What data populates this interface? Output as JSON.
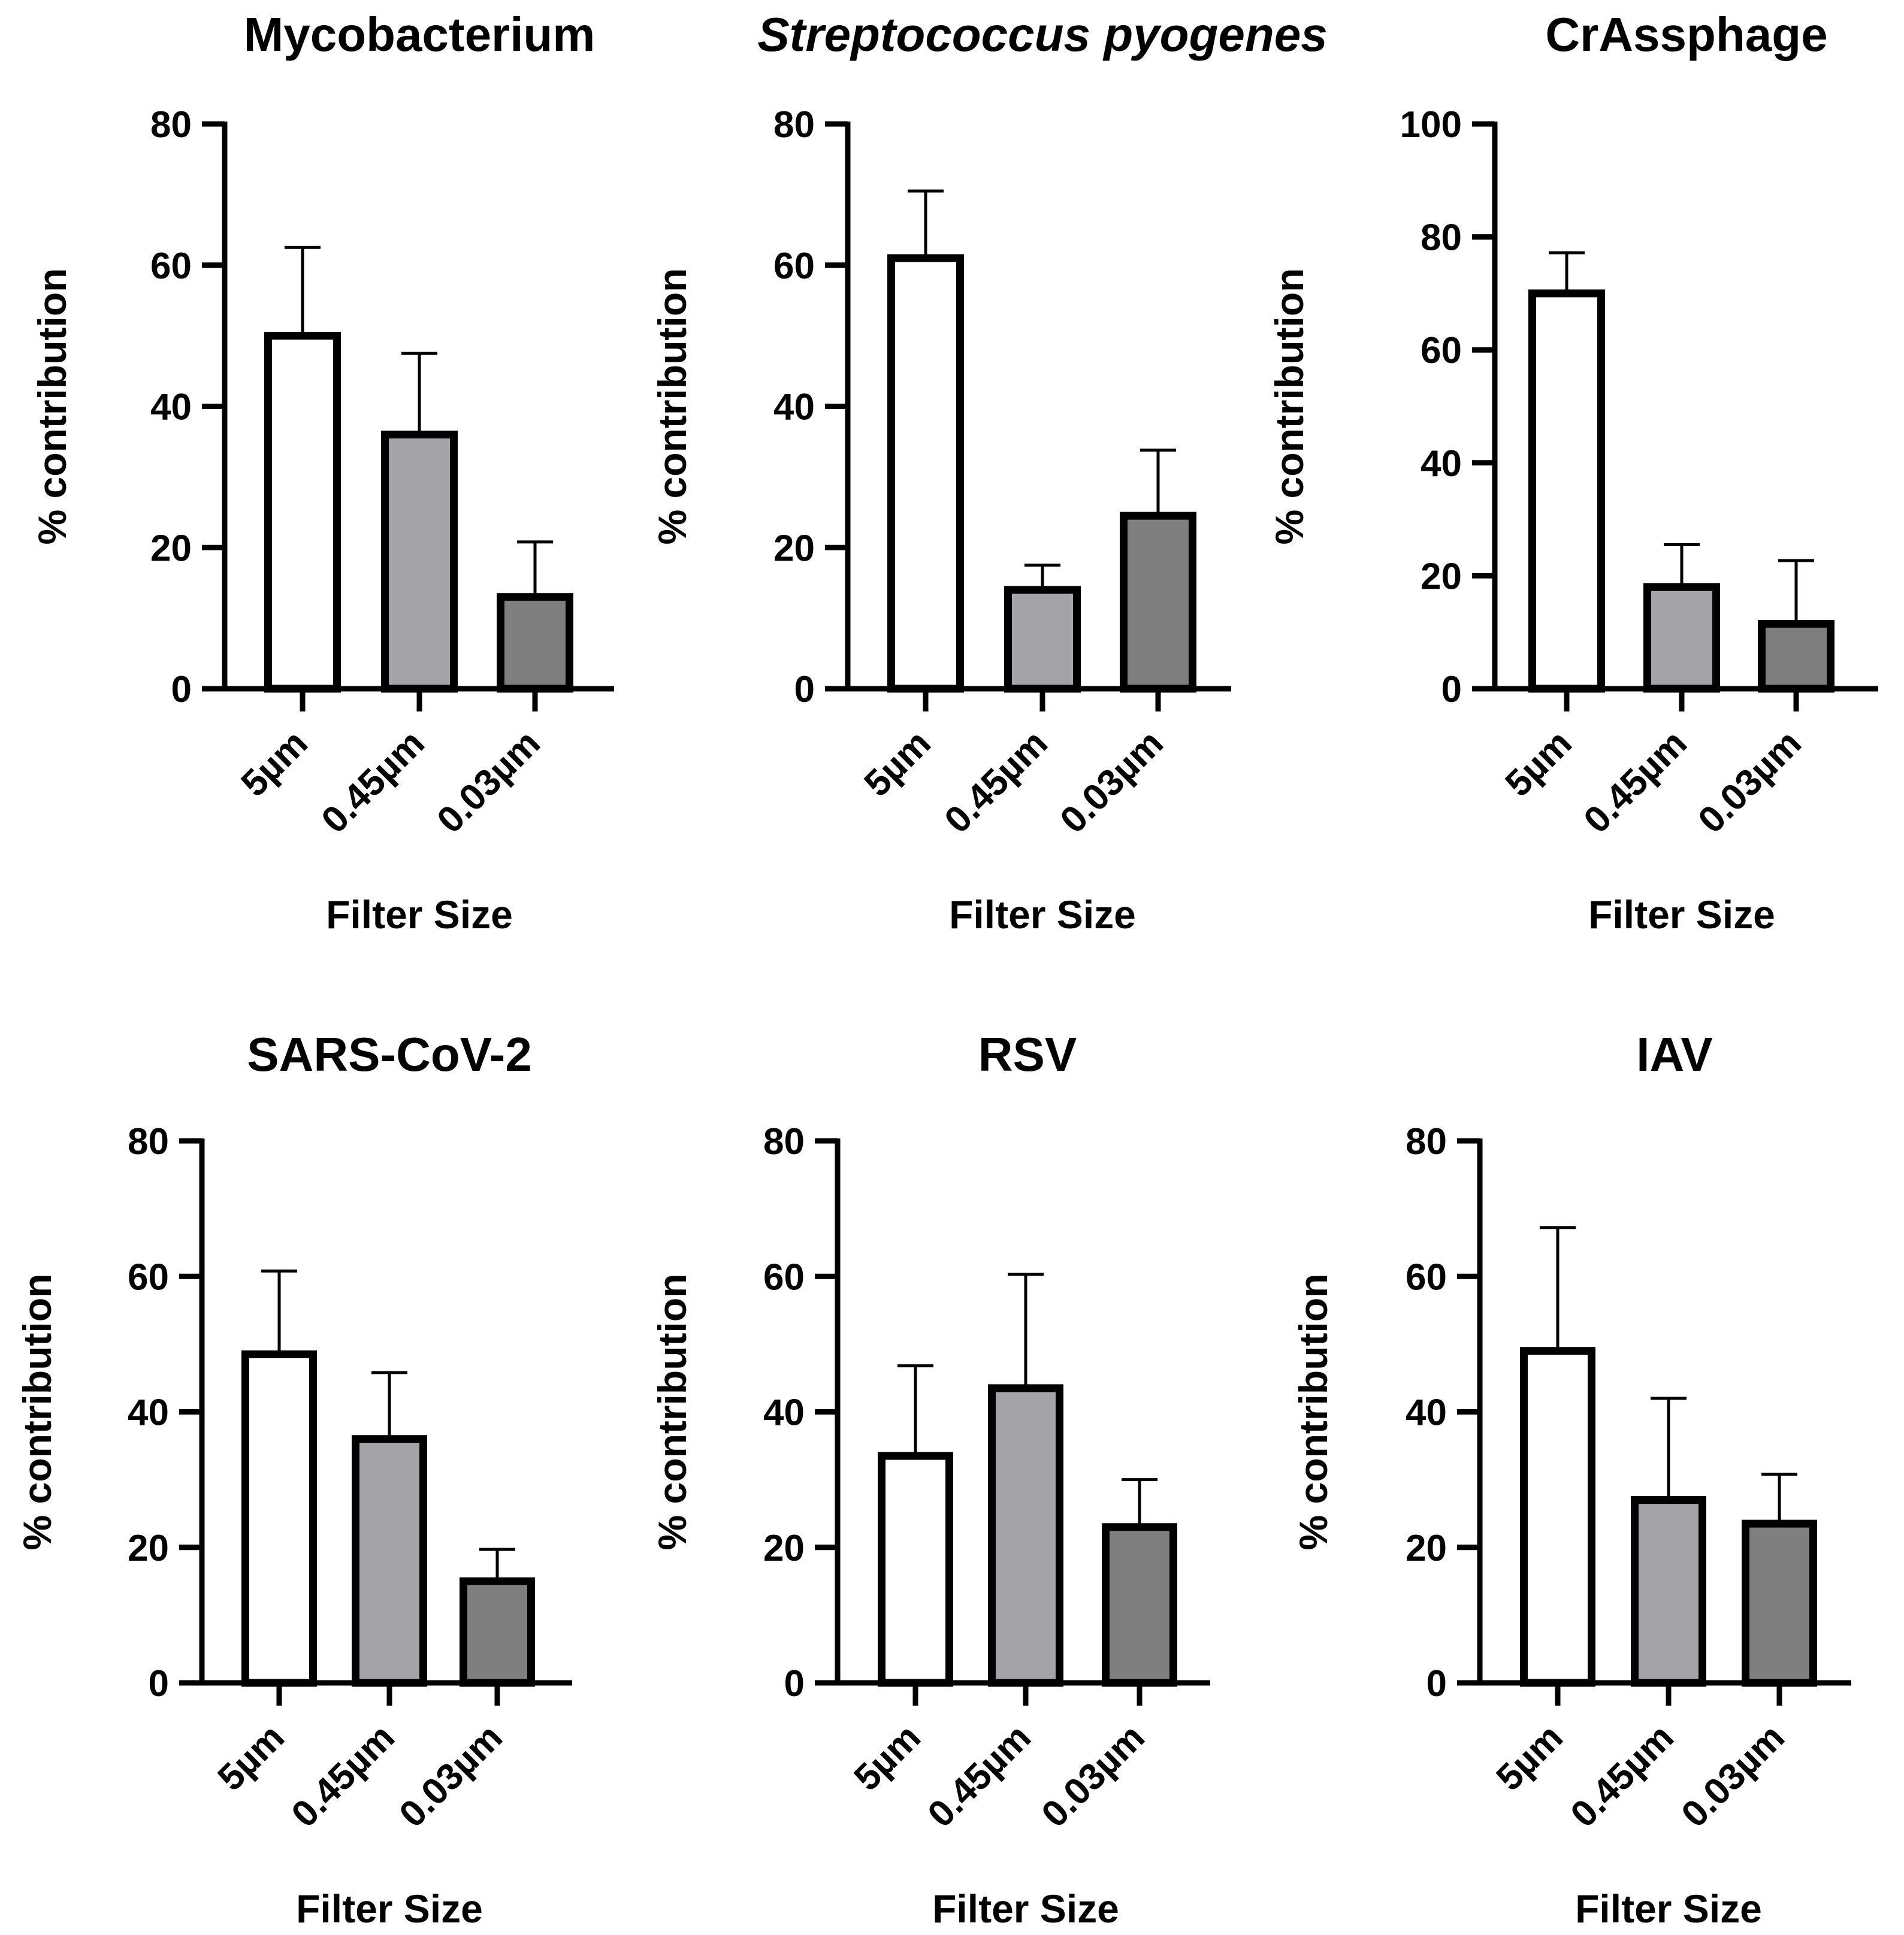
{
  "colors": {
    "bar_5um": "#ffffff",
    "bar_045um": "#a3a3a8",
    "bar_003um": "#7f7f7f",
    "outline": "#000000"
  },
  "chart_data": [
    {
      "type": "bar",
      "title": "Mycobacterium",
      "title_italic": false,
      "xlabel": "Filter Size",
      "ylabel": "% contribution",
      "categories": [
        "5µm",
        "0.45µm",
        "0.03µm"
      ],
      "values": [
        50,
        36,
        13
      ],
      "error_upper": [
        62.5,
        47.5,
        20.8
      ],
      "ylim": [
        0,
        80
      ],
      "yticks": [
        0,
        20,
        40,
        60,
        80
      ]
    },
    {
      "type": "bar",
      "title": "Streptococcus pyogenes",
      "title_italic": true,
      "xlabel": "Filter Size",
      "ylabel": "% contribution",
      "categories": [
        "5µm",
        "0.45µm",
        "0.03µm"
      ],
      "values": [
        61,
        14,
        24.5
      ],
      "error_upper": [
        70.5,
        17.5,
        33.8
      ],
      "ylim": [
        0,
        80
      ],
      "yticks": [
        0,
        20,
        40,
        60,
        80
      ]
    },
    {
      "type": "bar",
      "title": "CrAssphage",
      "title_italic": false,
      "xlabel": "Filter Size",
      "ylabel": "% contribution",
      "categories": [
        "5µm",
        "0.45µm",
        "0.03µm"
      ],
      "values": [
        70,
        18,
        11.5
      ],
      "error_upper": [
        77.2,
        25.5,
        22.7
      ],
      "ylim": [
        0,
        100
      ],
      "yticks": [
        0,
        20,
        40,
        60,
        80,
        100
      ]
    },
    {
      "type": "bar",
      "title": "SARS-CoV-2",
      "title_italic": false,
      "xlabel": "Filter Size",
      "ylabel": "% contribution",
      "categories": [
        "5µm",
        "0.45µm",
        "0.03µm"
      ],
      "values": [
        48.5,
        36,
        15
      ],
      "error_upper": [
        60.8,
        45.8,
        19.7
      ],
      "ylim": [
        0,
        80
      ],
      "yticks": [
        0,
        20,
        40,
        60,
        80
      ]
    },
    {
      "type": "bar",
      "title": "RSV",
      "title_italic": false,
      "xlabel": "Filter Size",
      "ylabel": "% contribution",
      "categories": [
        "5µm",
        "0.45µm",
        "0.03µm"
      ],
      "values": [
        33.5,
        43.5,
        23
      ],
      "error_upper": [
        46.8,
        60.3,
        30
      ],
      "ylim": [
        0,
        80
      ],
      "yticks": [
        0,
        20,
        40,
        60,
        80
      ]
    },
    {
      "type": "bar",
      "title": "IAV",
      "title_italic": false,
      "xlabel": "Filter Size",
      "ylabel": "% contribution",
      "categories": [
        "5µm",
        "0.45µm",
        "0.03µm"
      ],
      "values": [
        49,
        27,
        23.5
      ],
      "error_upper": [
        67.2,
        42,
        30.8
      ],
      "ylim": [
        0,
        80
      ],
      "yticks": [
        0,
        20,
        40,
        60,
        80
      ]
    }
  ]
}
